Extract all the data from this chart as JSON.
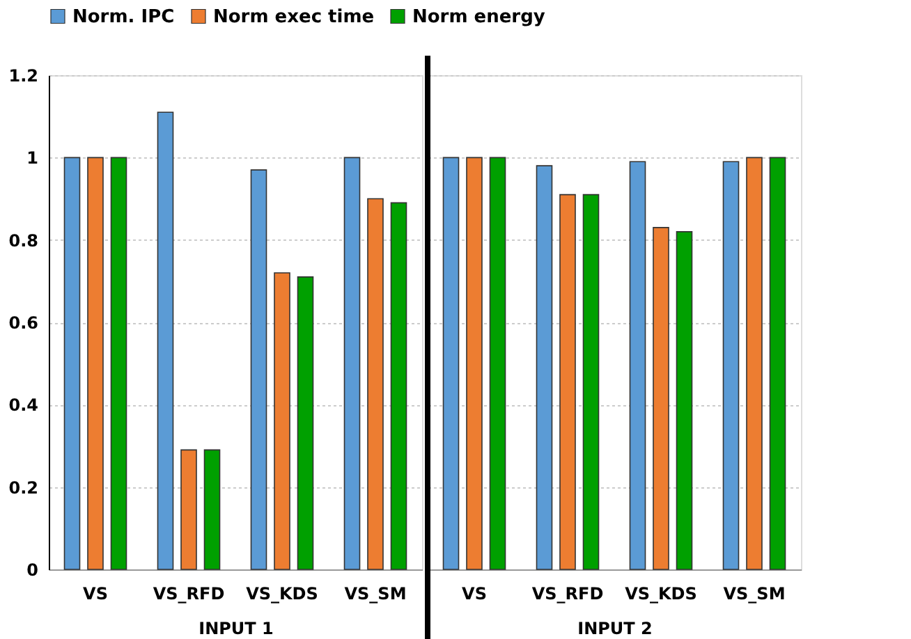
{
  "chart_data": [
    {
      "type": "bar",
      "categories": [
        "VS",
        "VS_RFD",
        "VS_KDS",
        "VS_SM"
      ],
      "xlabel": "INPUT 1",
      "series": [
        {
          "name": "Norm. IPC",
          "color": "#5b9bd5",
          "values": [
            1.0,
            1.11,
            0.97,
            1.0
          ]
        },
        {
          "name": "Norm exec time",
          "color": "#ed7d31",
          "values": [
            1.0,
            0.29,
            0.72,
            0.9
          ]
        },
        {
          "name": "Norm energy",
          "color": "#00a000",
          "values": [
            1.0,
            0.29,
            0.71,
            0.89
          ]
        }
      ],
      "ylim": [
        0,
        1.2
      ],
      "yticks": [
        0,
        0.2,
        0.4,
        0.6,
        0.8,
        1,
        1.2
      ],
      "grid": "y",
      "legend": "top"
    },
    {
      "type": "bar",
      "categories": [
        "VS",
        "VS_RFD",
        "VS_KDS",
        "VS_SM"
      ],
      "xlabel": "INPUT 2",
      "series": [
        {
          "name": "Norm. IPC",
          "color": "#5b9bd5",
          "values": [
            1.0,
            0.98,
            0.99,
            0.99
          ]
        },
        {
          "name": "Norm exec time",
          "color": "#ed7d31",
          "values": [
            1.0,
            0.91,
            0.83,
            1.0
          ]
        },
        {
          "name": "Norm energy",
          "color": "#00a000",
          "values": [
            1.0,
            0.91,
            0.82,
            1.0
          ]
        }
      ],
      "ylim": [
        0,
        1.2
      ],
      "yticks": [
        0,
        0.2,
        0.4,
        0.6,
        0.8,
        1,
        1.2
      ],
      "grid": "y",
      "tick_labels": "x"
    }
  ]
}
